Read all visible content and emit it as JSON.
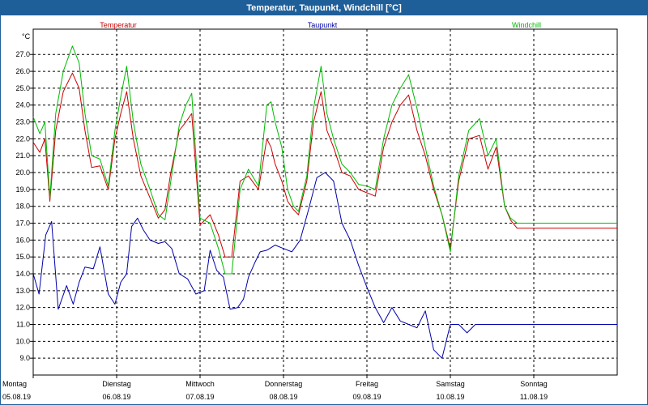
{
  "title": "Temperatur, Taupunkt, Windchill [°C]",
  "chart_data": {
    "type": "line",
    "unit": "°C",
    "ylim": [
      8.0,
      28.5
    ],
    "yticks": [
      9.0,
      10.0,
      11.0,
      12.0,
      13.0,
      14.0,
      15.0,
      16.0,
      17.0,
      18.0,
      19.0,
      20.0,
      21.0,
      22.0,
      23.0,
      24.0,
      25.0,
      26.0,
      27.0
    ],
    "xlim": [
      0,
      7
    ],
    "days": [
      {
        "name": "Montag",
        "date": "05.08.19"
      },
      {
        "name": "Dienstag",
        "date": "06.08.19"
      },
      {
        "name": "Mittwoch",
        "date": "07.08.19"
      },
      {
        "name": "Donnerstag",
        "date": "08.08.19"
      },
      {
        "name": "Freitag",
        "date": "09.08.19"
      },
      {
        "name": "Samstag",
        "date": "10.08.19"
      },
      {
        "name": "Sonntag",
        "date": "11.08.19"
      }
    ],
    "series": [
      {
        "name": "Temperatur",
        "color": "#cc0000",
        "x": [
          0,
          0.08,
          0.14,
          0.2,
          0.27,
          0.36,
          0.47,
          0.55,
          0.62,
          0.7,
          0.8,
          0.9,
          0.98,
          1.05,
          1.12,
          1.2,
          1.29,
          1.4,
          1.5,
          1.58,
          1.65,
          1.75,
          1.83,
          1.9,
          2.0,
          2.12,
          2.22,
          2.3,
          2.38,
          2.48,
          2.58,
          2.7,
          2.8,
          2.85,
          2.9,
          2.98,
          3.05,
          3.12,
          3.18,
          3.28,
          3.36,
          3.45,
          3.52,
          3.6,
          3.7,
          3.8,
          3.9,
          4.0,
          4.1,
          4.2,
          4.3,
          4.4,
          4.5,
          4.6,
          4.7,
          4.8,
          4.9,
          5.0,
          5.1,
          5.22,
          5.35,
          5.45,
          5.55,
          5.65,
          5.72,
          5.8,
          5.9,
          6.02,
          6.12,
          6.22,
          6.3,
          6.38,
          6.45,
          6.55,
          6.62,
          6.7,
          6.78,
          6.85,
          6.93,
          7.0
        ],
        "values": [
          21.8,
          21.2,
          22.0,
          18.3,
          22.5,
          24.8,
          25.9,
          25.0,
          22.5,
          20.3,
          20.4,
          19.0,
          22.0,
          23.5,
          24.8,
          22.0,
          19.8,
          18.5,
          17.3,
          17.8,
          20.0,
          22.5,
          23.0,
          23.5,
          16.9,
          17.5,
          16.3,
          15.0,
          15.0,
          19.5,
          19.8,
          19.0,
          22.0,
          21.5,
          20.5,
          19.5,
          18.3,
          17.8,
          17.5,
          19.5,
          23.0,
          24.8,
          22.5,
          21.5,
          20.0,
          19.8,
          19.0,
          18.8,
          18.6,
          21.5,
          23.0,
          24.0,
          24.6,
          22.5,
          21.0,
          19.0,
          17.5,
          15.5,
          19.5,
          22.0,
          22.2,
          20.2,
          21.5,
          18.0,
          17.2,
          16.7,
          16.7,
          16.7,
          16.7,
          16.7,
          16.7,
          16.7,
          16.7,
          16.7,
          16.7,
          16.7,
          16.7,
          16.7,
          16.7,
          16.7
        ]
      },
      {
        "name": "Taupunkt",
        "color": "#0000aa",
        "x": [
          0,
          0.07,
          0.15,
          0.22,
          0.3,
          0.4,
          0.48,
          0.55,
          0.62,
          0.72,
          0.8,
          0.9,
          0.98,
          1.05,
          1.12,
          1.18,
          1.25,
          1.32,
          1.4,
          1.5,
          1.58,
          1.66,
          1.75,
          1.85,
          1.95,
          2.05,
          2.12,
          2.2,
          2.28,
          2.36,
          2.45,
          2.52,
          2.58,
          2.66,
          2.72,
          2.8,
          2.9,
          3.0,
          3.1,
          3.2,
          3.3,
          3.4,
          3.5,
          3.6,
          3.7,
          3.8,
          3.9,
          4.0,
          4.1,
          4.2,
          4.3,
          4.4,
          4.5,
          4.6,
          4.7,
          4.8,
          4.9,
          5.0,
          5.1,
          5.2,
          5.3,
          5.4,
          5.5,
          5.6,
          5.7,
          5.8,
          5.9,
          6.0,
          6.1,
          6.2,
          6.3,
          6.4,
          6.5,
          6.6,
          6.7,
          6.8,
          6.9,
          7.0
        ],
        "values": [
          14.0,
          12.8,
          16.3,
          17.1,
          11.9,
          13.3,
          12.2,
          13.5,
          14.4,
          14.3,
          15.6,
          12.8,
          12.2,
          13.5,
          14.0,
          16.8,
          17.3,
          16.6,
          16.0,
          15.8,
          15.9,
          15.5,
          14.0,
          13.7,
          12.8,
          13.0,
          15.4,
          14.2,
          13.8,
          11.9,
          12.0,
          12.5,
          13.8,
          14.7,
          15.3,
          15.4,
          15.7,
          15.5,
          15.3,
          16.0,
          17.8,
          19.7,
          20.0,
          19.5,
          17.0,
          16.0,
          14.5,
          13.2,
          12.0,
          11.1,
          12.0,
          11.2,
          11.0,
          10.8,
          11.8,
          9.5,
          9.0,
          11.0,
          11.0,
          10.5,
          11.0,
          11.0,
          11.0,
          11.0,
          11.0,
          11.0,
          11.0,
          11.0,
          11.0,
          11.0,
          11.0,
          11.0,
          11.0,
          11.0,
          11.0,
          11.0,
          11.0,
          11.0
        ]
      },
      {
        "name": "Windchill",
        "color": "#00bb00",
        "x": [
          0,
          0.08,
          0.14,
          0.2,
          0.27,
          0.36,
          0.47,
          0.55,
          0.62,
          0.7,
          0.8,
          0.9,
          0.98,
          1.05,
          1.12,
          1.2,
          1.29,
          1.4,
          1.5,
          1.58,
          1.65,
          1.75,
          1.83,
          1.9,
          2.0,
          2.12,
          2.22,
          2.3,
          2.38,
          2.48,
          2.58,
          2.7,
          2.8,
          2.85,
          2.9,
          2.98,
          3.05,
          3.12,
          3.18,
          3.28,
          3.36,
          3.45,
          3.52,
          3.6,
          3.7,
          3.8,
          3.9,
          4.0,
          4.1,
          4.2,
          4.3,
          4.4,
          4.5,
          4.6,
          4.7,
          4.8,
          4.9,
          5.0,
          5.1,
          5.22,
          5.35,
          5.45,
          5.55,
          5.65,
          5.72,
          5.8,
          5.9,
          6.02,
          6.12,
          6.22,
          6.3,
          6.38,
          6.45,
          6.55,
          6.62,
          6.7,
          6.78,
          6.85,
          6.93,
          7.0
        ],
        "values": [
          23.3,
          22.3,
          23.0,
          18.5,
          23.5,
          26.0,
          27.5,
          26.5,
          23.5,
          21.0,
          20.8,
          19.2,
          22.5,
          24.5,
          26.3,
          23.0,
          20.5,
          19.0,
          17.5,
          17.2,
          19.5,
          22.8,
          24.0,
          24.7,
          17.3,
          17.0,
          15.5,
          14.0,
          14.0,
          19.0,
          20.2,
          19.2,
          24.0,
          24.2,
          23.0,
          21.5,
          19.0,
          18.0,
          17.7,
          19.8,
          23.8,
          26.3,
          23.5,
          22.0,
          20.5,
          20.0,
          19.3,
          19.2,
          19.0,
          22.0,
          24.0,
          25.0,
          25.8,
          23.8,
          21.5,
          19.2,
          17.5,
          15.3,
          19.8,
          22.5,
          23.2,
          21.0,
          22.0,
          18.0,
          17.3,
          17.0,
          17.0,
          17.0,
          17.0,
          17.0,
          17.0,
          17.0,
          17.0,
          17.0,
          17.0,
          17.0,
          17.0,
          17.0,
          17.0,
          17.0
        ]
      }
    ]
  }
}
